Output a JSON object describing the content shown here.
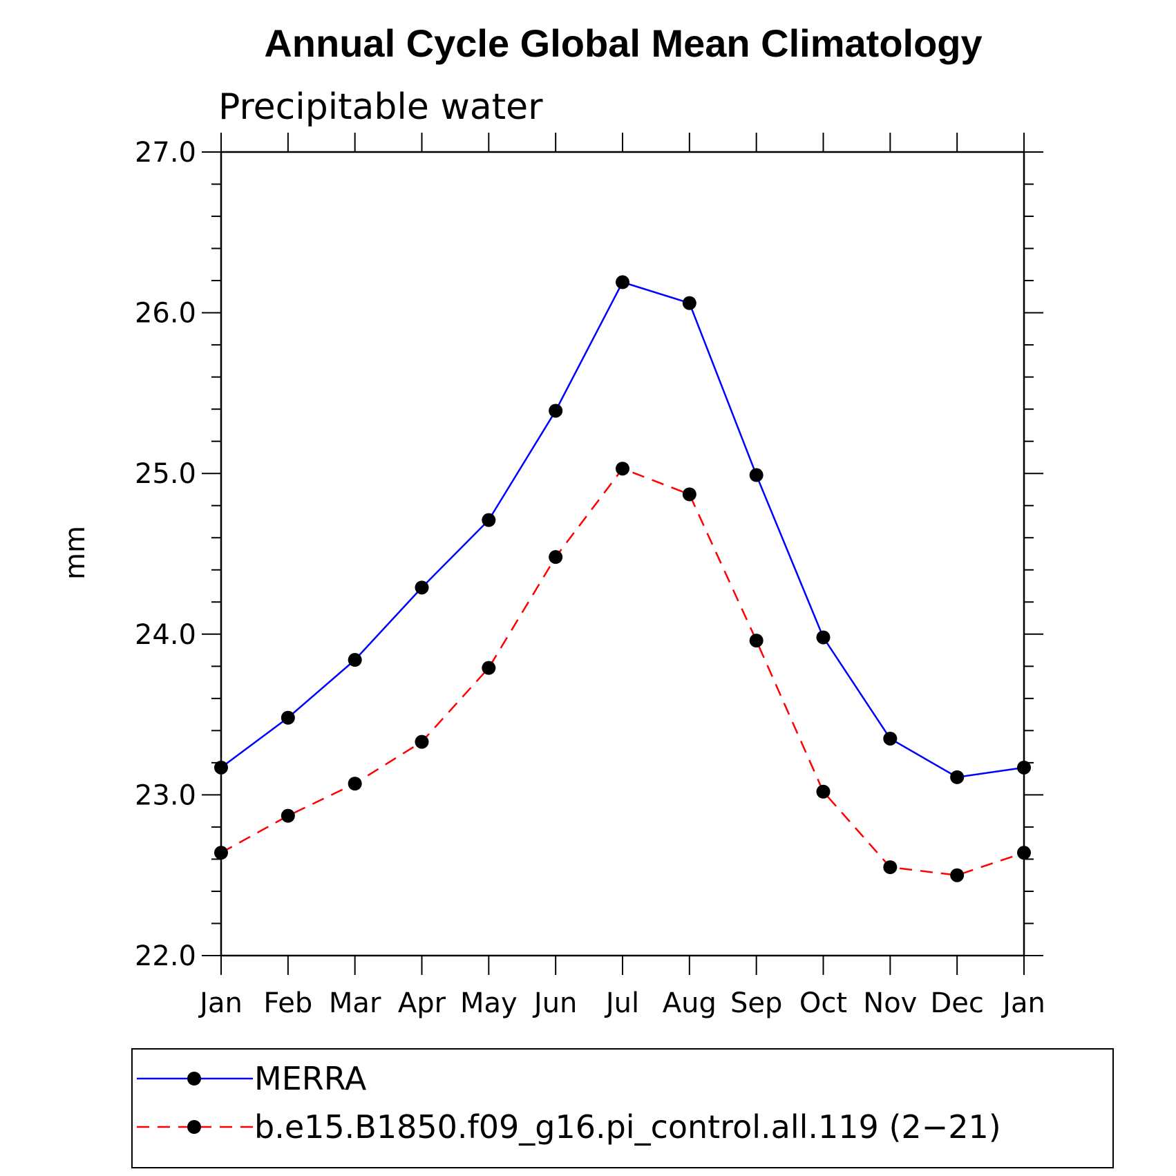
{
  "chart_data": {
    "type": "line",
    "title": "Annual Cycle Global Mean Climatology",
    "subtitle": "Precipitable water",
    "ylabel": "mm",
    "xlabel": "",
    "categories": [
      "Jan",
      "Feb",
      "Mar",
      "Apr",
      "May",
      "Jun",
      "Jul",
      "Aug",
      "Sep",
      "Oct",
      "Nov",
      "Dec",
      "Jan"
    ],
    "ylim": [
      22.0,
      27.0
    ],
    "yticks": [
      "22.0",
      "23.0",
      "24.0",
      "25.0",
      "26.0",
      "27.0"
    ],
    "ytick_values": [
      22.0,
      23.0,
      24.0,
      25.0,
      26.0,
      27.0
    ],
    "y_minor_step": 0.2,
    "grid": false,
    "legend_position": "bottom",
    "series": [
      {
        "name": "MERRA",
        "color": "#0000ff",
        "line_style": "solid",
        "marker": "filled-circle",
        "values": [
          23.17,
          23.48,
          23.84,
          24.29,
          24.71,
          25.39,
          26.19,
          26.06,
          24.99,
          23.98,
          23.35,
          23.11,
          23.17
        ]
      },
      {
        "name": "b.e15.B1850.f09_g16.pi_control.all.119 (2−21)",
        "color": "#ff0000",
        "line_style": "dashed",
        "marker": "filled-circle",
        "values": [
          22.64,
          22.87,
          23.07,
          23.33,
          23.79,
          24.48,
          25.03,
          24.87,
          23.96,
          23.02,
          22.55,
          22.5,
          22.64
        ]
      }
    ]
  }
}
